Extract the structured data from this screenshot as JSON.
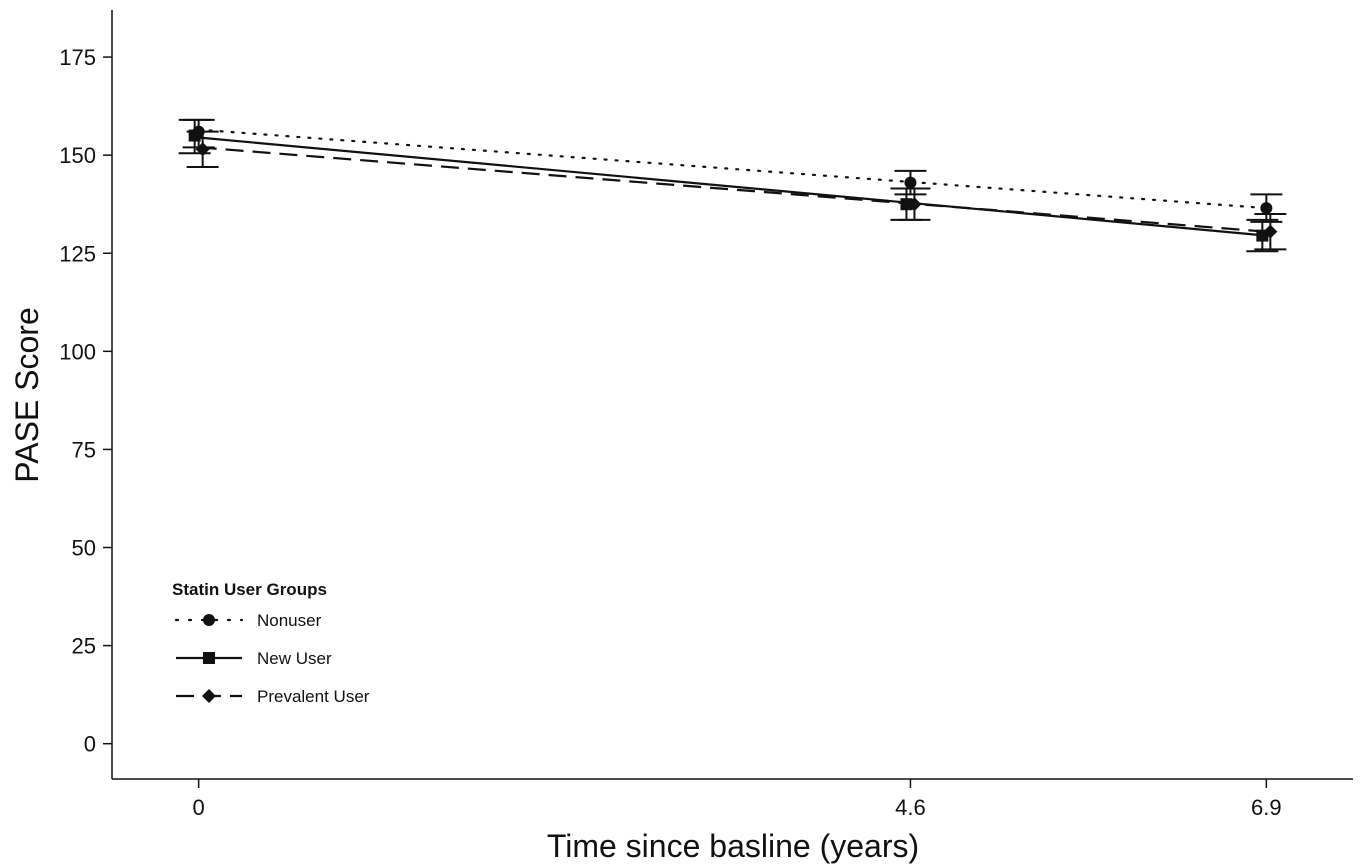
{
  "chart_data": {
    "type": "line",
    "xlabel": "Time since basline (years)",
    "ylabel": "PASE Score",
    "x": [
      0,
      4.6,
      6.9
    ],
    "x_tick_labels": [
      "0",
      "4.6",
      "6.9"
    ],
    "ylim": [
      -9,
      187
    ],
    "xlim": [
      -0.56,
      7.46
    ],
    "y_ticks": [
      0,
      25,
      50,
      75,
      100,
      125,
      150,
      175
    ],
    "grid": false,
    "legend": {
      "title": "Statin User Groups",
      "placement": "bottom-left"
    },
    "series": [
      {
        "name": "Nonuser",
        "line_style": "dotted",
        "marker": "circle",
        "points": [
          {
            "x": 0,
            "y": 156,
            "lo": 152,
            "hi": 159
          },
          {
            "x": 4.6,
            "y": 143,
            "lo": 140,
            "hi": 146
          },
          {
            "x": 6.9,
            "y": 136.5,
            "lo": 133,
            "hi": 140
          }
        ],
        "fit": [
          156.5,
          136.5
        ]
      },
      {
        "name": "New User",
        "line_style": "solid",
        "marker": "square",
        "points": [
          {
            "x": 0,
            "y": 155,
            "lo": 150.5,
            "hi": 159
          },
          {
            "x": 4.6,
            "y": 137.5,
            "lo": 133.5,
            "hi": 141.5
          },
          {
            "x": 6.9,
            "y": 129.5,
            "lo": 125.5,
            "hi": 133.5
          }
        ],
        "fit": [
          154.5,
          129.5
        ]
      },
      {
        "name": "Prevalent User",
        "line_style": "dashed",
        "marker": "diamond",
        "points": [
          {
            "x": 0,
            "y": 151.5,
            "lo": 147,
            "hi": 156
          },
          {
            "x": 4.6,
            "y": 137.5,
            "lo": 133.5,
            "hi": 141.5
          },
          {
            "x": 6.9,
            "y": 130.5,
            "lo": 126,
            "hi": 135
          }
        ],
        "fit": [
          152,
          130.5
        ]
      }
    ]
  }
}
